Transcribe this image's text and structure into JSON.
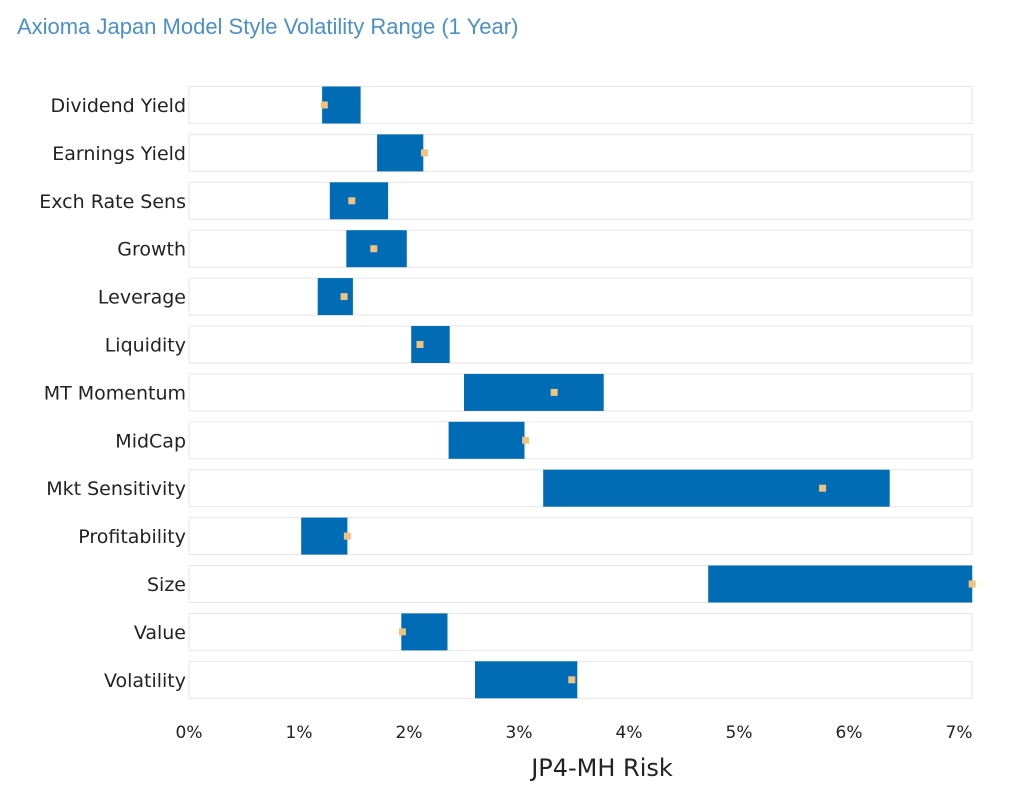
{
  "colors": {
    "title": "#4a90c9",
    "range_bar": "#006cb5",
    "track_fill": "#ffffff",
    "track_stroke": "#e6e6e6",
    "marker": "#f2c27f",
    "text": "#222222"
  },
  "chart_data": {
    "type": "bar",
    "title": "Axioma Japan Model Style Volatility Range (1 Year)",
    "xlabel": "JP4-MH Risk",
    "ylabel": "",
    "xlim": [
      0,
      7.1
    ],
    "x_ticks": [
      0,
      1,
      2,
      3,
      4,
      5,
      6,
      7
    ],
    "x_tick_labels": [
      "0%",
      "1%",
      "2%",
      "3%",
      "4%",
      "5%",
      "6%",
      "7%"
    ],
    "categories": [
      "Dividend Yield",
      "Earnings Yield",
      "Exch Rate Sens",
      "Growth",
      "Leverage",
      "Liquidity",
      "MT Momentum",
      "MidCap",
      "Mkt Sensitivity",
      "Profitability",
      "Size",
      "Value",
      "Volatility"
    ],
    "series": [
      {
        "name": "",
        "role": "range_low",
        "values": [
          1.21,
          1.71,
          1.28,
          1.43,
          1.17,
          2.02,
          2.5,
          2.36,
          3.22,
          1.02,
          4.72,
          1.93,
          2.6
        ]
      },
      {
        "name": "",
        "role": "range_high",
        "values": [
          1.56,
          2.13,
          1.81,
          1.98,
          1.49,
          2.37,
          3.77,
          3.05,
          6.37,
          1.44,
          7.12,
          2.35,
          3.53
        ]
      },
      {
        "name": "",
        "role": "current",
        "values": [
          1.23,
          2.14,
          1.48,
          1.68,
          1.41,
          2.1,
          3.32,
          3.06,
          5.76,
          1.44,
          7.12,
          1.94,
          3.48
        ]
      }
    ],
    "grid": false,
    "legend": "none"
  }
}
